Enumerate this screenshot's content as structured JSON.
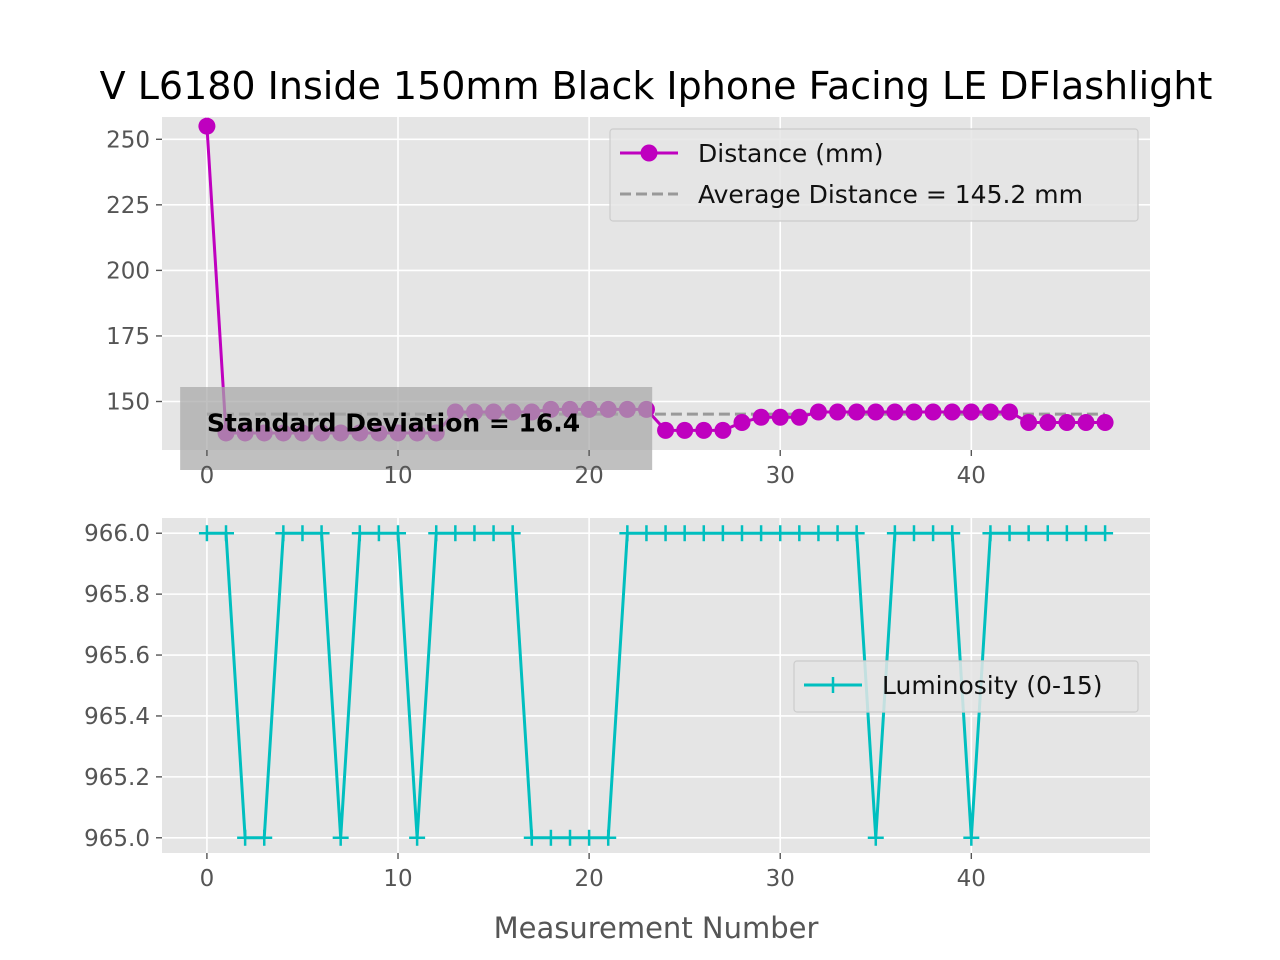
{
  "title": "V L6180 Inside 150mm Black Iphone Facing LE DFlashlight",
  "colors": {
    "distance": "#bf00bf",
    "average": "#999999",
    "luminosity": "#00bfbf",
    "plot_bg": "#e5e5e5",
    "grid": "#ffffff"
  },
  "chart_data": [
    {
      "type": "line",
      "xlabel": "",
      "ylabel": "",
      "xlim": [
        -2.35,
        49.35
      ],
      "ylim": [
        131.5,
        258.5
      ],
      "xticks": [
        0,
        10,
        20,
        30,
        40
      ],
      "yticks": [
        150,
        175,
        200,
        225,
        250
      ],
      "grid": true,
      "legend_position": "upper right",
      "series": [
        {
          "name": "Distance (mm)",
          "marker": "circle",
          "x": [
            0,
            1,
            2,
            3,
            4,
            5,
            6,
            7,
            8,
            9,
            10,
            11,
            12,
            13,
            14,
            15,
            16,
            17,
            18,
            19,
            20,
            21,
            22,
            23,
            24,
            25,
            26,
            27,
            28,
            29,
            30,
            31,
            32,
            33,
            34,
            35,
            36,
            37,
            38,
            39,
            40,
            41,
            42,
            43,
            44,
            45,
            46,
            47
          ],
          "values": [
            255,
            138,
            138,
            138,
            138,
            138,
            138,
            138,
            138,
            138,
            138,
            138,
            138,
            146,
            146,
            146,
            146,
            146,
            147,
            147,
            147,
            147,
            147,
            147,
            139,
            139,
            139,
            139,
            142,
            144,
            144,
            144,
            146,
            146,
            146,
            146,
            146,
            146,
            146,
            146,
            146,
            146,
            146,
            142,
            142,
            142,
            142,
            142
          ]
        },
        {
          "name": "Average Distance = 145.2 mm",
          "style": "dashed",
          "x": [
            0,
            47
          ],
          "values": [
            145.2,
            145.2
          ]
        }
      ],
      "annotation": {
        "text": "Standard Deviation = 16.4",
        "x": 0,
        "y": 140
      }
    },
    {
      "type": "line",
      "xlabel": "Measurement Number",
      "ylabel": "",
      "xlim": [
        -2.35,
        49.35
      ],
      "ylim": [
        964.95,
        966.05
      ],
      "xticks": [
        0,
        10,
        20,
        30,
        40
      ],
      "yticks": [
        965.0,
        965.2,
        965.4,
        965.6,
        965.8,
        966.0
      ],
      "ytick_labels": [
        "965.0",
        "965.2",
        "965.4",
        "965.6",
        "965.8",
        "966.0"
      ],
      "grid": true,
      "legend_position": "center right",
      "series": [
        {
          "name": "Luminosity (0-15)",
          "marker": "plus",
          "x": [
            0,
            1,
            2,
            3,
            4,
            5,
            6,
            7,
            8,
            9,
            10,
            11,
            12,
            13,
            14,
            15,
            16,
            17,
            18,
            19,
            20,
            21,
            22,
            23,
            24,
            25,
            26,
            27,
            28,
            29,
            30,
            31,
            32,
            33,
            34,
            35,
            36,
            37,
            38,
            39,
            40,
            41,
            42,
            43,
            44,
            45,
            46,
            47
          ],
          "values": [
            966,
            966,
            965,
            965,
            966,
            966,
            966,
            965,
            966,
            966,
            966,
            965,
            966,
            966,
            966,
            966,
            966,
            965,
            965,
            965,
            965,
            965,
            966,
            966,
            966,
            966,
            966,
            966,
            966,
            966,
            966,
            966,
            966,
            966,
            966,
            965,
            966,
            966,
            966,
            966,
            965,
            966,
            966,
            966,
            966,
            966,
            966,
            966
          ]
        }
      ]
    }
  ]
}
